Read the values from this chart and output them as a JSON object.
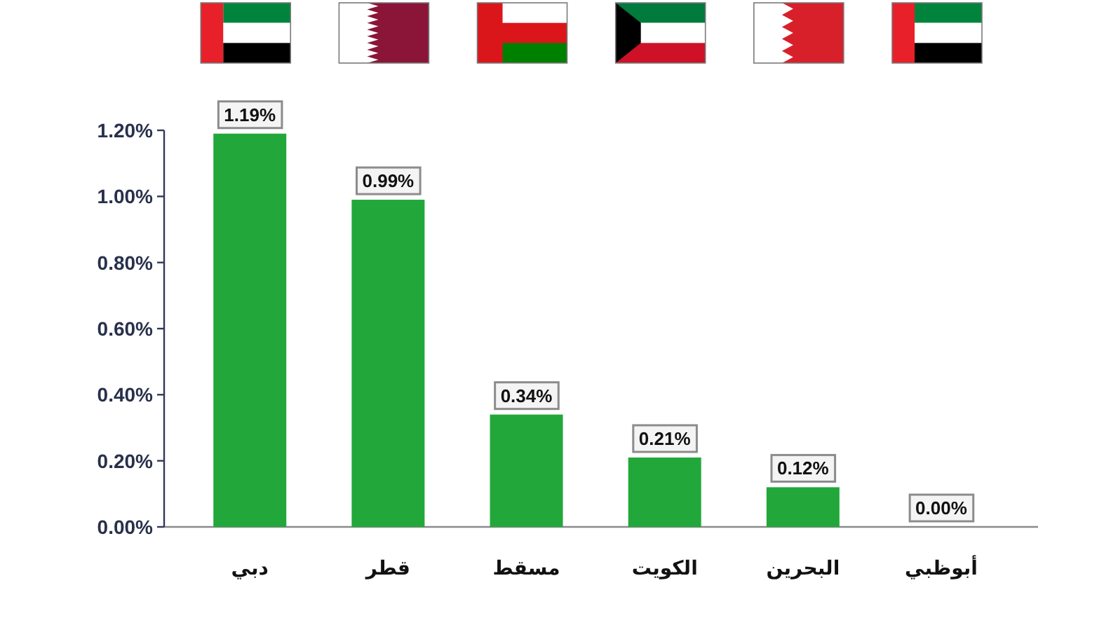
{
  "chart_data": {
    "type": "bar",
    "categories": [
      "دبي",
      "قطر",
      "مسقط",
      "الكويت",
      "البحرين",
      "أبوظبي"
    ],
    "values": [
      1.19,
      0.99,
      0.34,
      0.21,
      0.12,
      0.0
    ],
    "value_labels": [
      "1.19%",
      "0.99%",
      "0.34%",
      "0.21%",
      "0.12%",
      "0.00%"
    ],
    "color": "#22a83a",
    "ylim": [
      0,
      1.2
    ],
    "yticks": [
      {
        "value": 0,
        "label": "0.00%"
      },
      {
        "value": 0.2,
        "label": "0.20%"
      },
      {
        "value": 0.4,
        "label": "0.40%"
      },
      {
        "value": 0.6,
        "label": "0.60%"
      },
      {
        "value": 0.8,
        "label": "0.80%"
      },
      {
        "value": 1.0,
        "label": "1.00%"
      },
      {
        "value": 1.2,
        "label": "1.20%"
      }
    ]
  }
}
